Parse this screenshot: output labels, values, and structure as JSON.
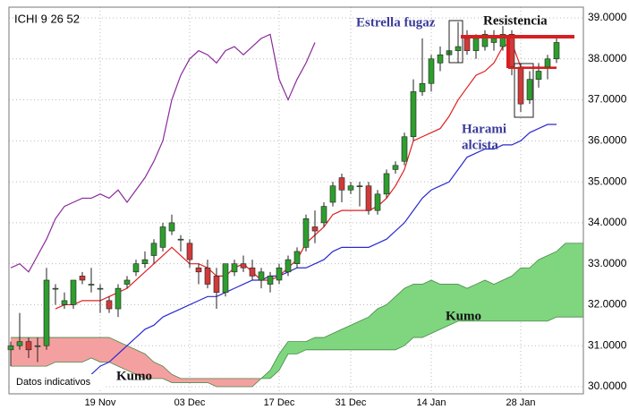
{
  "chart_data": {
    "type": "candlestick",
    "annotations": {
      "indicator": "ICHI 9 26 52",
      "shooting_star": "Estrella fugaz",
      "resistance": "Resistencia",
      "harami": [
        "Harami",
        "alcista"
      ],
      "kumo_right": "Kumo",
      "kumo_left": "Kumo",
      "disclaimer": "Datos indicativos"
    },
    "categories": [
      null,
      null,
      null,
      null,
      null,
      null,
      null,
      null,
      null,
      null,
      "19 Nov",
      null,
      null,
      null,
      null,
      null,
      null,
      null,
      null,
      null,
      "03 Dec",
      null,
      null,
      null,
      null,
      null,
      null,
      null,
      null,
      null,
      "17 Dec",
      null,
      null,
      null,
      null,
      null,
      null,
      null,
      "31 Dec",
      null,
      null,
      null,
      null,
      null,
      null,
      null,
      null,
      "14 Jan",
      null,
      null,
      null,
      null,
      null,
      null,
      null,
      null,
      null,
      "28 Jan",
      null,
      null,
      null,
      null,
      null,
      null,
      null
    ],
    "candles": {
      "up_color": "#2e9e2e",
      "down_color": "#d03a3a",
      "open": [
        30.9,
        31.0,
        31.1,
        31.0,
        31.0,
        32.4,
        32.0,
        32.0,
        32.7,
        32.5,
        32.4,
        32.1,
        31.9,
        32.5,
        32.8,
        33.0,
        33.2,
        33.4,
        33.8,
        33.6,
        33.5,
        32.9,
        32.9,
        32.7,
        32.3,
        32.8,
        33.0,
        32.9,
        32.6,
        32.5,
        32.6,
        32.8,
        33.0,
        33.4,
        33.9,
        34.0,
        34.5,
        35.1,
        34.8,
        34.9,
        34.9,
        34.3,
        34.7,
        35.3,
        35.5,
        36.1,
        37.2,
        37.4,
        37.9,
        38.1,
        38.2,
        38.5,
        38.2,
        38.3,
        38.4,
        38.3,
        38.6,
        37.8,
        37.0,
        37.5,
        37.8,
        38.0,
        null,
        null,
        null
      ],
      "high": [
        31.1,
        31.8,
        31.2,
        31.2,
        32.9,
        32.5,
        32.3,
        32.6,
        32.8,
        32.9,
        32.5,
        32.2,
        32.5,
        32.7,
        33.1,
        33.3,
        33.6,
        34.0,
        34.2,
        33.7,
        33.6,
        33.0,
        33.1,
        32.9,
        33.0,
        33.1,
        33.2,
        33.1,
        32.9,
        32.8,
        33.0,
        33.2,
        33.4,
        34.2,
        34.3,
        34.5,
        35.0,
        35.2,
        35.0,
        35.0,
        35.0,
        34.8,
        35.3,
        35.5,
        36.2,
        37.5,
        38.5,
        38.1,
        38.3,
        38.4,
        38.9,
        38.7,
        38.6,
        38.7,
        38.7,
        38.8,
        38.7,
        37.9,
        37.7,
        37.9,
        38.1,
        38.5,
        null,
        null,
        null
      ],
      "low": [
        30.5,
        30.9,
        30.7,
        30.6,
        30.9,
        32.0,
        31.9,
        31.9,
        32.5,
        32.3,
        31.8,
        31.8,
        31.7,
        32.4,
        32.7,
        32.9,
        33.0,
        33.3,
        33.7,
        33.3,
        32.9,
        32.5,
        32.4,
        31.9,
        32.2,
        32.7,
        32.8,
        32.6,
        32.4,
        32.3,
        32.5,
        32.7,
        32.9,
        33.3,
        33.5,
        33.9,
        34.4,
        34.5,
        34.7,
        34.4,
        34.2,
        34.2,
        34.6,
        35.2,
        35.4,
        36.0,
        37.1,
        37.2,
        37.7,
        38.0,
        37.9,
        38.1,
        38.0,
        38.2,
        38.2,
        38.2,
        37.6,
        36.7,
        36.9,
        37.3,
        37.5,
        37.9,
        null,
        null,
        null
      ],
      "close": [
        31.0,
        31.1,
        30.9,
        31.0,
        32.6,
        32.4,
        32.1,
        32.6,
        32.6,
        32.5,
        32.4,
        31.9,
        32.4,
        32.6,
        33.0,
        33.1,
        33.5,
        33.9,
        34.0,
        33.6,
        33.1,
        32.8,
        32.5,
        32.3,
        33.0,
        33.0,
        32.9,
        32.7,
        32.8,
        32.7,
        32.9,
        33.1,
        33.3,
        34.1,
        33.8,
        34.4,
        34.9,
        34.8,
        34.9,
        34.9,
        34.3,
        34.7,
        35.2,
        35.4,
        36.1,
        37.2,
        37.4,
        38.0,
        38.1,
        38.2,
        38.3,
        38.2,
        38.5,
        38.6,
        38.5,
        38.6,
        37.8,
        36.9,
        37.5,
        37.7,
        38.0,
        38.4,
        null,
        null,
        null
      ]
    },
    "lines": [
      {
        "color": "#e02020",
        "values": [
          null,
          null,
          null,
          null,
          null,
          31.9,
          32.0,
          32.0,
          32.1,
          32.1,
          32.1,
          32.2,
          32.3,
          32.4,
          32.6,
          32.8,
          33.0,
          33.2,
          33.4,
          33.2,
          33.0,
          33.0,
          32.9,
          32.7,
          32.7,
          32.9,
          33.0,
          32.8,
          32.6,
          32.6,
          32.7,
          32.9,
          33.1,
          33.5,
          33.7,
          33.9,
          34.2,
          34.3,
          34.3,
          34.3,
          34.3,
          34.4,
          34.6,
          34.9,
          35.3,
          36.0,
          36.1,
          36.2,
          36.3,
          36.6,
          37.0,
          37.3,
          37.6,
          37.7,
          37.9,
          38.3,
          38.4,
          37.8,
          37.8,
          37.8,
          37.8,
          37.8,
          null,
          null,
          null
        ]
      },
      {
        "color": "#2a2ad0",
        "values": [
          null,
          null,
          null,
          null,
          null,
          null,
          null,
          null,
          null,
          30.3,
          30.5,
          30.6,
          30.8,
          31.0,
          31.2,
          31.4,
          31.5,
          31.7,
          31.8,
          31.9,
          32.0,
          32.1,
          32.2,
          32.2,
          32.3,
          32.4,
          32.5,
          32.6,
          32.6,
          32.7,
          32.7,
          32.8,
          32.9,
          32.9,
          33.0,
          33.1,
          33.3,
          33.4,
          33.4,
          33.4,
          33.4,
          33.5,
          33.6,
          33.8,
          34.0,
          34.3,
          34.6,
          34.8,
          34.9,
          35.0,
          35.3,
          35.6,
          35.7,
          35.8,
          35.8,
          35.9,
          35.9,
          36.0,
          36.2,
          36.3,
          36.4,
          36.4,
          null,
          null,
          null
        ]
      },
      {
        "color": "#8a2a9a",
        "values": [
          32.9,
          33.0,
          32.8,
          33.2,
          33.6,
          34.1,
          34.4,
          34.5,
          34.6,
          34.6,
          34.7,
          34.6,
          34.8,
          34.5,
          34.8,
          35.1,
          35.5,
          36.0,
          37.0,
          37.6,
          38.0,
          38.2,
          38.1,
          37.9,
          38.2,
          38.3,
          38.1,
          38.3,
          38.5,
          38.6,
          37.5,
          37.0,
          37.5,
          37.9,
          38.4,
          null,
          null,
          null,
          null,
          null,
          null,
          null,
          null,
          null,
          null,
          null,
          null,
          null,
          null,
          null,
          null,
          null,
          null,
          null,
          null,
          null,
          null,
          null,
          null,
          null,
          null,
          null,
          null,
          null,
          null
        ]
      }
    ],
    "cloud": {
      "up_color": "#7fd67f",
      "down_color": "#f5a0a0",
      "span_a": [
        30.5,
        30.5,
        30.5,
        30.5,
        30.5,
        30.6,
        30.6,
        30.6,
        30.6,
        30.7,
        30.6,
        30.6,
        30.5,
        30.4,
        30.3,
        30.2,
        30.2,
        30.2,
        30.1,
        30.1,
        30.1,
        30.1,
        30.1,
        30.0,
        30.0,
        30.0,
        30.0,
        30.0,
        30.2,
        30.4,
        30.8,
        31.1,
        31.1,
        31.1,
        31.2,
        31.2,
        31.3,
        31.4,
        31.5,
        31.6,
        31.7,
        31.9,
        32.0,
        32.2,
        32.4,
        32.5,
        32.5,
        32.6,
        32.5,
        32.5,
        32.5,
        32.4,
        32.5,
        32.6,
        32.5,
        32.6,
        32.7,
        32.9,
        32.9,
        33.1,
        33.2,
        33.3,
        33.5,
        33.5,
        33.5
      ],
      "span_b": [
        31.2,
        31.2,
        31.2,
        31.2,
        31.2,
        31.2,
        31.2,
        31.2,
        31.2,
        31.2,
        31.2,
        31.2,
        31.1,
        31.0,
        30.9,
        30.8,
        30.6,
        30.5,
        30.3,
        30.2,
        30.2,
        30.2,
        30.2,
        30.2,
        30.2,
        30.2,
        30.2,
        30.2,
        30.2,
        30.2,
        30.4,
        30.8,
        30.8,
        30.9,
        30.9,
        30.9,
        30.9,
        30.9,
        30.9,
        30.9,
        30.9,
        30.9,
        30.9,
        30.9,
        31.0,
        31.2,
        31.2,
        31.3,
        31.4,
        31.5,
        31.6,
        31.6,
        31.6,
        31.6,
        31.6,
        31.6,
        31.6,
        31.6,
        31.6,
        31.6,
        31.6,
        31.7,
        31.7,
        31.7,
        31.7
      ]
    },
    "ylim": [
      30.0,
      39.0
    ],
    "yticks": [
      {
        "value": 39,
        "label": "39.0000"
      },
      {
        "value": 38,
        "label": "38.0000"
      },
      {
        "value": 37,
        "label": "37.0000"
      },
      {
        "value": 36,
        "label": "36.0000"
      },
      {
        "value": 35,
        "label": "35.0000"
      },
      {
        "value": 34,
        "label": "34.0000"
      },
      {
        "value": 33,
        "label": "33.0000"
      },
      {
        "value": 32,
        "label": "32.0000"
      },
      {
        "value": 31,
        "label": "31.0000"
      },
      {
        "value": 30,
        "label": "30.0000"
      }
    ],
    "grid": true
  }
}
